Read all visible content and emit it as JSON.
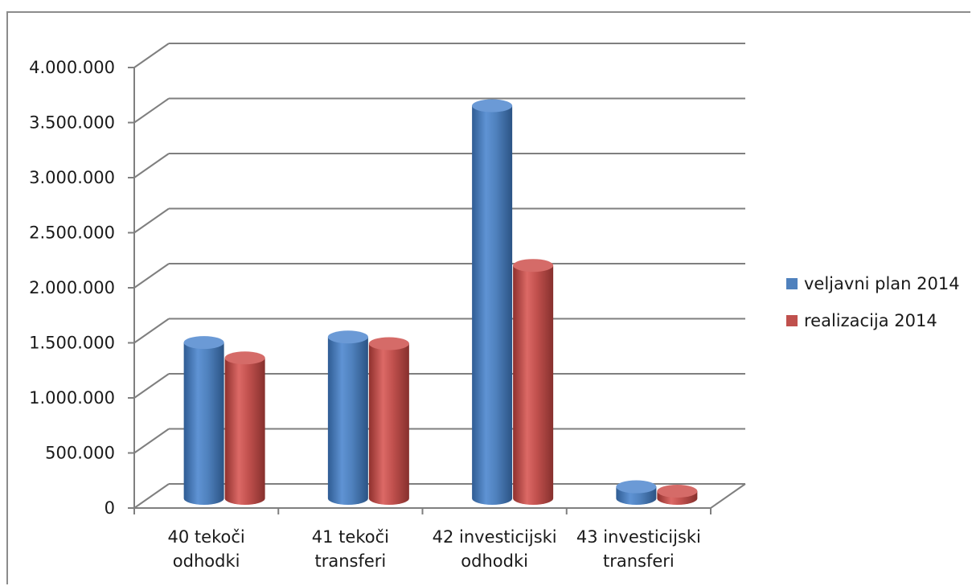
{
  "chart_data": {
    "type": "bar",
    "style": "3d-cylinder",
    "title": "",
    "xlabel": "",
    "ylabel": "",
    "categories": [
      [
        "40 tekoči",
        "odhodki"
      ],
      [
        "41 tekoči",
        "transferi"
      ],
      [
        "42 investicijski",
        "odhodki"
      ],
      [
        "43 investicijski",
        "transferi"
      ]
    ],
    "series": [
      {
        "name": "veljavni plan 2014",
        "color": "#4f81bd",
        "values": [
          1430000,
          1480000,
          3580000,
          120000
        ]
      },
      {
        "name": "realizacija 2014",
        "color": "#c0504d",
        "values": [
          1290000,
          1420000,
          2130000,
          80000
        ]
      }
    ],
    "ylim": [
      0,
      4000000
    ],
    "yticks": [
      0,
      500000,
      1000000,
      1500000,
      2000000,
      2500000,
      3000000,
      3500000,
      4000000
    ],
    "ytick_labels": [
      "0",
      "500.000",
      "1.000.000",
      "1.500.000",
      "2.000.000",
      "2.500.000",
      "3.000.000",
      "3.500.000",
      "4.000.000"
    ],
    "grid": true,
    "legend_position": "right"
  }
}
